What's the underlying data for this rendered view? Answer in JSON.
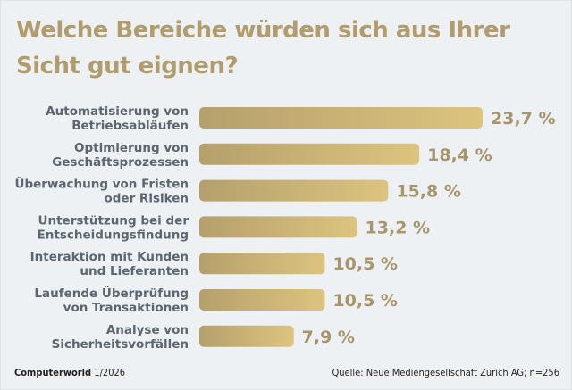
{
  "chart_data": {
    "type": "bar",
    "orientation": "horizontal",
    "title": "Welche Bereiche würden sich aus Ihrer Sicht gut eignen?",
    "categories": [
      [
        "Automatisierung von",
        "Betriebsabläufen"
      ],
      [
        "Optimierung von",
        "Geschäftsprozessen"
      ],
      [
        "Überwachung von Fristen",
        "oder Risiken"
      ],
      [
        "Unterstützung bei der",
        "Entscheidungsfindung"
      ],
      [
        "Interaktion mit Kunden",
        "und Lieferanten"
      ],
      [
        "Laufende Überprüfung",
        "von Transaktionen"
      ],
      [
        "Analyse von",
        "Sicherheitsvorfällen"
      ]
    ],
    "values": [
      23.7,
      18.4,
      15.8,
      13.2,
      10.5,
      10.5,
      7.9
    ],
    "value_labels": [
      "23,7 %",
      "18,4 %",
      "15,8 %",
      "13,2 %",
      "10,5 %",
      "10,5 %",
      "7,9 %"
    ],
    "unit": "%",
    "xlabel": "",
    "ylabel": "",
    "xlim": [
      0,
      23.7
    ],
    "grid": false,
    "legend": "none",
    "colors": {
      "bar_start": "#b5a06c",
      "bar_end": "#dcc47f",
      "title": "#b09c6c",
      "label": "#5b6670",
      "value": "#a8966b"
    }
  },
  "footer": {
    "publication": "Computerworld",
    "issue": "1/2026",
    "source": "Quelle: Neue Mediengesellschaft Zürich AG; n=256"
  }
}
